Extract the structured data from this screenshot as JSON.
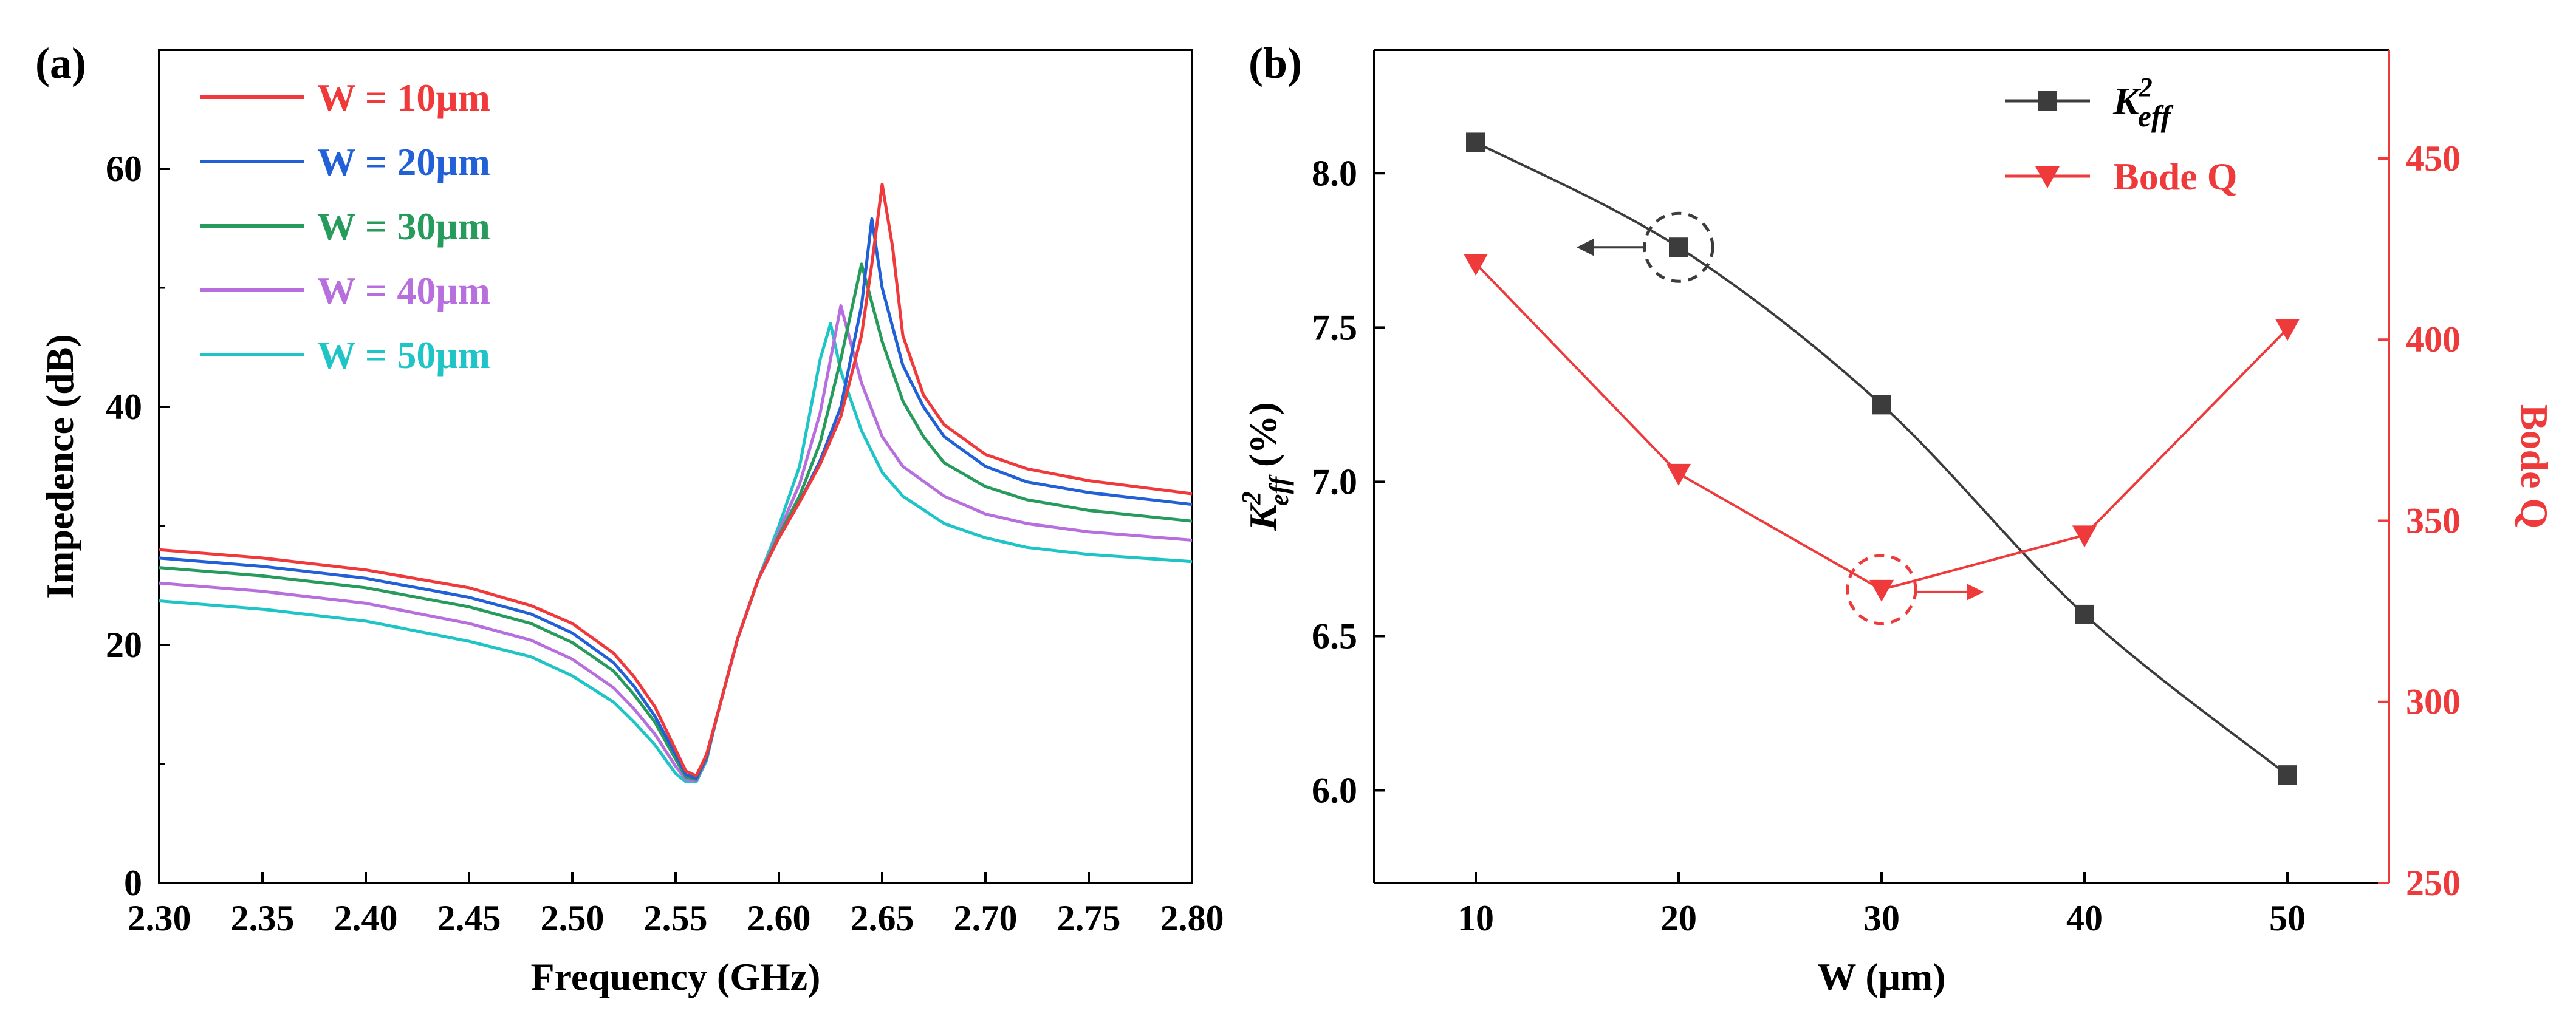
{
  "chart_data": [
    {
      "panel_label": "(a)",
      "type": "line",
      "xlabel": "Frequency (GHz)",
      "ylabel": "Impedence (dB)",
      "xlim": [
        2.3,
        2.8
      ],
      "ylim": [
        0,
        70
      ],
      "xticks": [
        "2.30",
        "2.35",
        "2.40",
        "2.45",
        "2.50",
        "2.55",
        "2.60",
        "2.65",
        "2.70",
        "2.75",
        "2.80"
      ],
      "yticks": [
        "0",
        "20",
        "40",
        "60"
      ],
      "series": [
        {
          "name": "W = 10μm",
          "color": "#f0393b",
          "x": [
            2.3,
            2.35,
            2.4,
            2.45,
            2.48,
            2.5,
            2.52,
            2.53,
            2.54,
            2.55,
            2.555,
            2.56,
            2.565,
            2.57,
            2.58,
            2.59,
            2.6,
            2.61,
            2.62,
            2.63,
            2.64,
            2.645,
            2.65,
            2.655,
            2.66,
            2.67,
            2.68,
            2.7,
            2.72,
            2.75,
            2.8
          ],
          "y": [
            28.0,
            27.3,
            26.3,
            24.8,
            23.3,
            21.8,
            19.3,
            17.3,
            14.8,
            11.2,
            9.4,
            9.0,
            10.8,
            14.0,
            20.5,
            25.5,
            29.0,
            32.0,
            35.2,
            39.2,
            46.0,
            52.0,
            58.7,
            53.5,
            46.0,
            41.0,
            38.5,
            36.0,
            34.8,
            33.8,
            32.7
          ]
        },
        {
          "name": "W = 20μm",
          "color": "#2160d6",
          "x": [
            2.3,
            2.35,
            2.4,
            2.45,
            2.48,
            2.5,
            2.52,
            2.53,
            2.54,
            2.55,
            2.555,
            2.56,
            2.565,
            2.57,
            2.58,
            2.59,
            2.6,
            2.61,
            2.62,
            2.63,
            2.64,
            2.645,
            2.65,
            2.66,
            2.67,
            2.68,
            2.7,
            2.72,
            2.75,
            2.8
          ],
          "y": [
            27.3,
            26.6,
            25.6,
            24.0,
            22.6,
            21.0,
            18.5,
            16.5,
            14.0,
            10.8,
            9.1,
            8.8,
            10.6,
            14.0,
            20.5,
            25.5,
            29.0,
            32.0,
            35.5,
            40.0,
            48.5,
            55.8,
            50.0,
            43.5,
            40.0,
            37.5,
            35.0,
            33.7,
            32.8,
            31.8
          ]
        },
        {
          "name": "W = 30μm",
          "color": "#279b5c",
          "x": [
            2.3,
            2.35,
            2.4,
            2.45,
            2.48,
            2.5,
            2.52,
            2.53,
            2.54,
            2.55,
            2.555,
            2.56,
            2.565,
            2.57,
            2.58,
            2.59,
            2.6,
            2.61,
            2.62,
            2.63,
            2.64,
            2.65,
            2.66,
            2.67,
            2.68,
            2.7,
            2.72,
            2.75,
            2.8
          ],
          "y": [
            26.5,
            25.8,
            24.8,
            23.2,
            21.8,
            20.2,
            17.8,
            15.8,
            13.5,
            10.4,
            8.9,
            8.7,
            10.5,
            14.0,
            20.5,
            25.5,
            29.2,
            32.5,
            37.0,
            44.0,
            52.0,
            45.5,
            40.5,
            37.5,
            35.3,
            33.3,
            32.2,
            31.3,
            30.4
          ]
        },
        {
          "name": "W = 40μm",
          "color": "#b76fde",
          "x": [
            2.3,
            2.35,
            2.4,
            2.45,
            2.48,
            2.5,
            2.52,
            2.53,
            2.54,
            2.55,
            2.555,
            2.56,
            2.565,
            2.57,
            2.58,
            2.59,
            2.6,
            2.61,
            2.62,
            2.625,
            2.63,
            2.64,
            2.65,
            2.66,
            2.68,
            2.7,
            2.72,
            2.75,
            2.8
          ],
          "y": [
            25.2,
            24.5,
            23.5,
            21.8,
            20.4,
            18.8,
            16.4,
            14.6,
            12.5,
            9.8,
            8.7,
            8.6,
            10.4,
            14.0,
            20.5,
            25.5,
            29.5,
            33.5,
            39.5,
            44.0,
            48.5,
            42.0,
            37.5,
            35.0,
            32.5,
            31.0,
            30.2,
            29.5,
            28.8
          ]
        },
        {
          "name": "W = 50μm",
          "color": "#1fc4c7",
          "x": [
            2.3,
            2.35,
            2.4,
            2.45,
            2.48,
            2.5,
            2.52,
            2.53,
            2.54,
            2.55,
            2.555,
            2.56,
            2.565,
            2.57,
            2.58,
            2.59,
            2.6,
            2.61,
            2.62,
            2.625,
            2.63,
            2.64,
            2.65,
            2.66,
            2.68,
            2.7,
            2.72,
            2.75,
            2.8
          ],
          "y": [
            23.7,
            23.0,
            22.0,
            20.3,
            19.0,
            17.4,
            15.2,
            13.5,
            11.6,
            9.2,
            8.5,
            8.5,
            10.3,
            14.0,
            20.5,
            25.5,
            30.0,
            35.0,
            44.0,
            47.0,
            43.0,
            38.0,
            34.5,
            32.5,
            30.2,
            29.0,
            28.2,
            27.6,
            27.0
          ]
        }
      ]
    },
    {
      "panel_label": "(b)",
      "type": "line",
      "xlabel": "W (μm)",
      "ylabel_left_prefix": "K",
      "ylabel_left_sup": "2",
      "ylabel_left_sub": "eff",
      "ylabel_left_suffix": " (%)",
      "ylabel_right": "Bode Q",
      "xlim": [
        5,
        55
      ],
      "ylim_left": [
        5.7,
        8.4
      ],
      "ylim_right": [
        250,
        480
      ],
      "xticks": [
        "10",
        "20",
        "30",
        "40",
        "50"
      ],
      "yticks_left": [
        "6.0",
        "6.5",
        "7.0",
        "7.5",
        "8.0"
      ],
      "yticks_right": [
        "250",
        "300",
        "350",
        "400",
        "450"
      ],
      "series": [
        {
          "name": "K2eff",
          "legend_base": "K",
          "legend_sup": "2",
          "legend_sub": "eff",
          "axis": "left",
          "marker": "square",
          "color": "#3c3c3c",
          "x": [
            10,
            20,
            30,
            40,
            50
          ],
          "y": [
            8.1,
            7.76,
            7.25,
            6.57,
            6.05
          ]
        },
        {
          "name": "Bode Q",
          "axis": "right",
          "marker": "triangle-down",
          "color": "#ee3a3a",
          "x": [
            10,
            20,
            30,
            40,
            50
          ],
          "y": [
            421,
            363,
            331,
            346,
            403
          ]
        }
      ],
      "annotations": [
        {
          "type": "dashed-circle",
          "series": "K2eff",
          "x": 20,
          "arrow": "left",
          "color": "#3c3c3c"
        },
        {
          "type": "dashed-circle",
          "series": "Bode Q",
          "x": 30,
          "arrow": "right",
          "color": "#ee3a3a"
        }
      ]
    }
  ]
}
